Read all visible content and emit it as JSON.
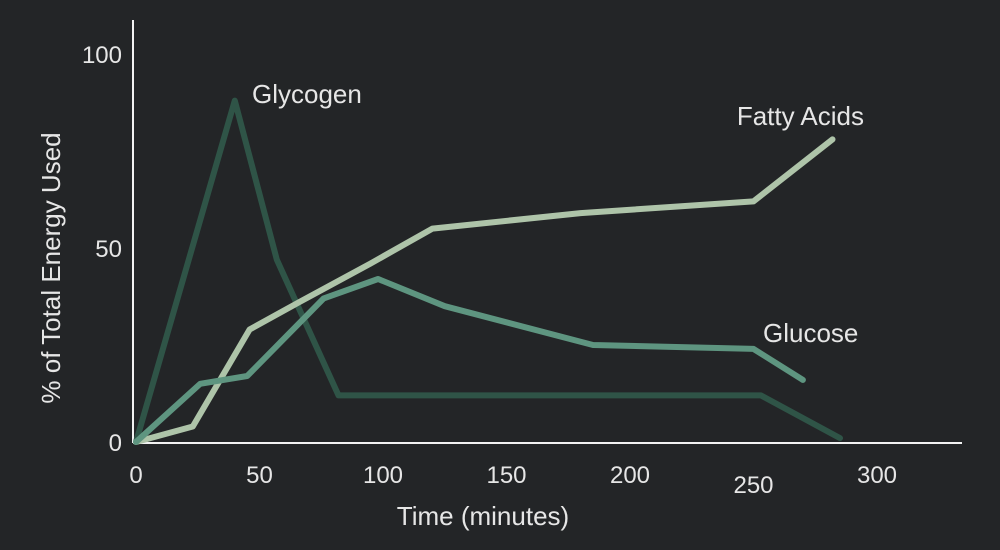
{
  "chart_data": {
    "type": "line",
    "title": "",
    "xlabel": "Time (minutes)",
    "ylabel": "% of Total Energy Used",
    "xlim": [
      0,
      335
    ],
    "ylim": [
      0,
      100
    ],
    "grid": false,
    "legend": "inline labels",
    "x_ticks": [
      {
        "value": 0,
        "label": "0"
      },
      {
        "value": 50,
        "label": "50"
      },
      {
        "value": 100,
        "label": "100"
      },
      {
        "value": 150,
        "label": "150"
      },
      {
        "value": 200,
        "label": "200"
      },
      {
        "value": 250,
        "label": "250"
      },
      {
        "value": 300,
        "label": "300"
      }
    ],
    "y_ticks": [
      {
        "value": 0,
        "label": "0"
      },
      {
        "value": 50,
        "label": "50"
      },
      {
        "value": 100,
        "label": "100"
      }
    ],
    "series": [
      {
        "name": "Glycogen",
        "color": "#2f5447",
        "points": [
          [
            0,
            0
          ],
          [
            40,
            88
          ],
          [
            57,
            47
          ],
          [
            82,
            12
          ],
          [
            253,
            12
          ],
          [
            285,
            1
          ]
        ]
      },
      {
        "name": "Fatty Acids",
        "color": "#aec4a9",
        "points": [
          [
            0,
            0
          ],
          [
            23,
            4
          ],
          [
            46,
            29
          ],
          [
            66,
            36
          ],
          [
            95,
            46
          ],
          [
            120,
            55
          ],
          [
            180,
            59
          ],
          [
            250,
            62
          ],
          [
            282,
            78
          ]
        ]
      },
      {
        "name": "Glucose",
        "color": "#5e9580",
        "points": [
          [
            0,
            0
          ],
          [
            26,
            15
          ],
          [
            45,
            17
          ],
          [
            76,
            37
          ],
          [
            98,
            42
          ],
          [
            125,
            35
          ],
          [
            185,
            25
          ],
          [
            250,
            24
          ],
          [
            270,
            16
          ]
        ]
      }
    ]
  }
}
